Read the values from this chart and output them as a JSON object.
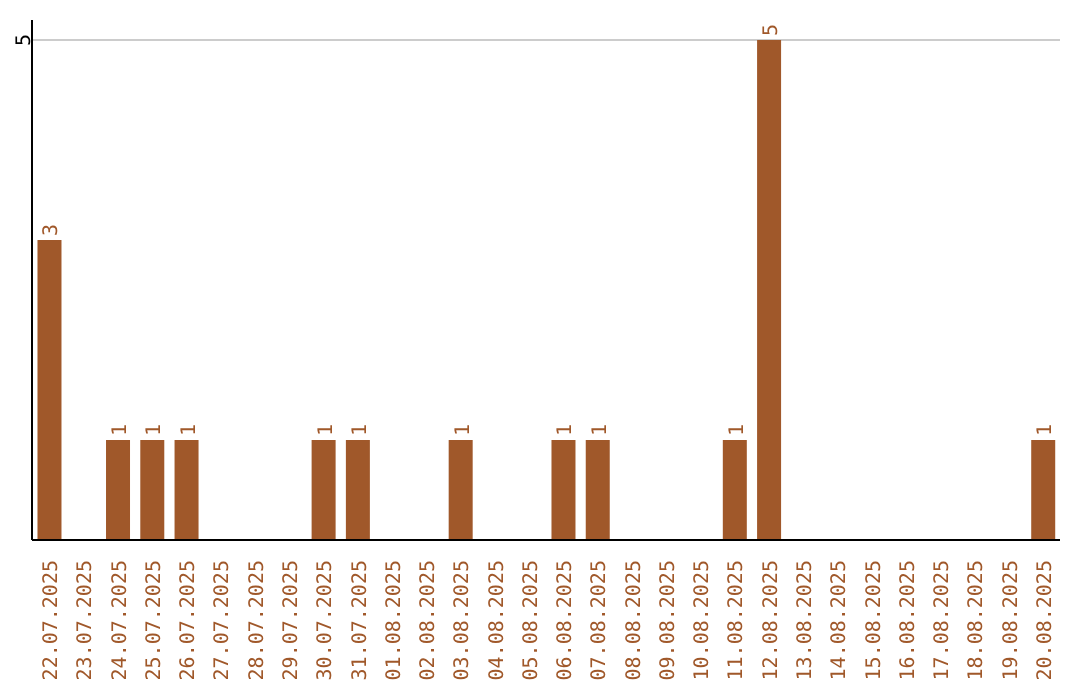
{
  "chart_data": {
    "type": "bar",
    "categories": [
      "22.07.2025",
      "23.07.2025",
      "24.07.2025",
      "25.07.2025",
      "26.07.2025",
      "27.07.2025",
      "28.07.2025",
      "29.07.2025",
      "30.07.2025",
      "31.07.2025",
      "01.08.2025",
      "02.08.2025",
      "03.08.2025",
      "04.08.2025",
      "05.08.2025",
      "06.08.2025",
      "07.08.2025",
      "08.08.2025",
      "09.08.2025",
      "10.08.2025",
      "11.08.2025",
      "12.08.2025",
      "13.08.2025",
      "14.08.2025",
      "15.08.2025",
      "16.08.2025",
      "17.08.2025",
      "18.08.2025",
      "19.08.2025",
      "20.08.2025"
    ],
    "values": [
      3,
      0,
      1,
      1,
      1,
      0,
      0,
      0,
      1,
      1,
      0,
      0,
      1,
      0,
      0,
      1,
      1,
      0,
      0,
      0,
      1,
      5,
      0,
      0,
      0,
      0,
      0,
      0,
      0,
      1
    ],
    "value_labels": [
      "3",
      null,
      "1",
      "1",
      "1",
      null,
      null,
      null,
      "1",
      "1",
      null,
      null,
      "1",
      null,
      null,
      "1",
      "1",
      null,
      null,
      null,
      "1",
      "5",
      null,
      null,
      null,
      null,
      null,
      null,
      null,
      "1"
    ],
    "color": "#a0582a",
    "ylim": [
      0,
      5.2
    ],
    "yticks": [
      5
    ],
    "grid": "y"
  }
}
